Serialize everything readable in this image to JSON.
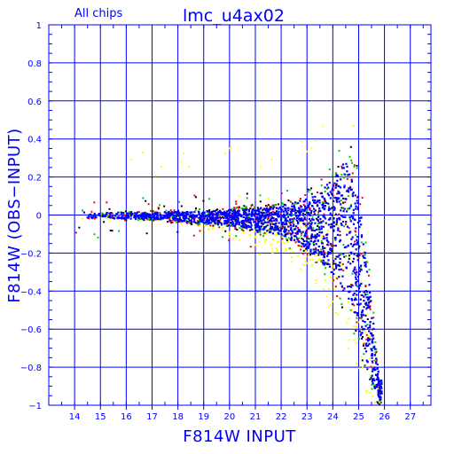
{
  "colors": {
    "axis": "#0000ff",
    "grid": "#0000ff",
    "series": [
      "#000000",
      "#ffff00",
      "#ff0000",
      "#00cc00",
      "#0000ff"
    ]
  },
  "chart_data": {
    "type": "scatter",
    "title": "lmc_u4ax02",
    "subtitle": "All chips",
    "xlabel": "F814W  INPUT",
    "ylabel": "F814W  (OBS−INPUT)",
    "xlim": [
      13,
      27.8
    ],
    "ylim": [
      -1,
      1
    ],
    "x_ticks": [
      "14",
      "15",
      "16",
      "17",
      "18",
      "19",
      "20",
      "21",
      "22",
      "23",
      "24",
      "25",
      "26",
      "27"
    ],
    "y_ticks": [
      "1",
      "0.8",
      "0.6",
      "0.4",
      "0.2",
      "0",
      "−0.2",
      "−0.4",
      "−0.6",
      "−0.8",
      "−1"
    ],
    "grid": true,
    "legend": "none",
    "series": [
      {
        "color": "#000000"
      },
      {
        "color": "#ffff00"
      },
      {
        "color": "#ff0000"
      },
      {
        "color": "#00cc00"
      },
      {
        "color": "#0000ff"
      }
    ],
    "envelope": {
      "x": [
        14.0,
        17.0,
        20.0,
        22.0,
        23.0,
        23.5,
        24.0,
        24.3,
        24.6,
        24.9,
        25.2,
        25.5,
        25.8
      ],
      "upper": [
        0.02,
        0.02,
        0.04,
        0.07,
        0.13,
        0.18,
        0.28,
        0.36,
        0.42,
        0.3,
        0.0,
        -0.4,
        -0.85
      ],
      "lower": [
        -0.02,
        -0.03,
        -0.07,
        -0.13,
        -0.22,
        -0.3,
        -0.4,
        -0.48,
        -0.56,
        -0.65,
        -0.8,
        -0.95,
        -1.0
      ]
    }
  }
}
